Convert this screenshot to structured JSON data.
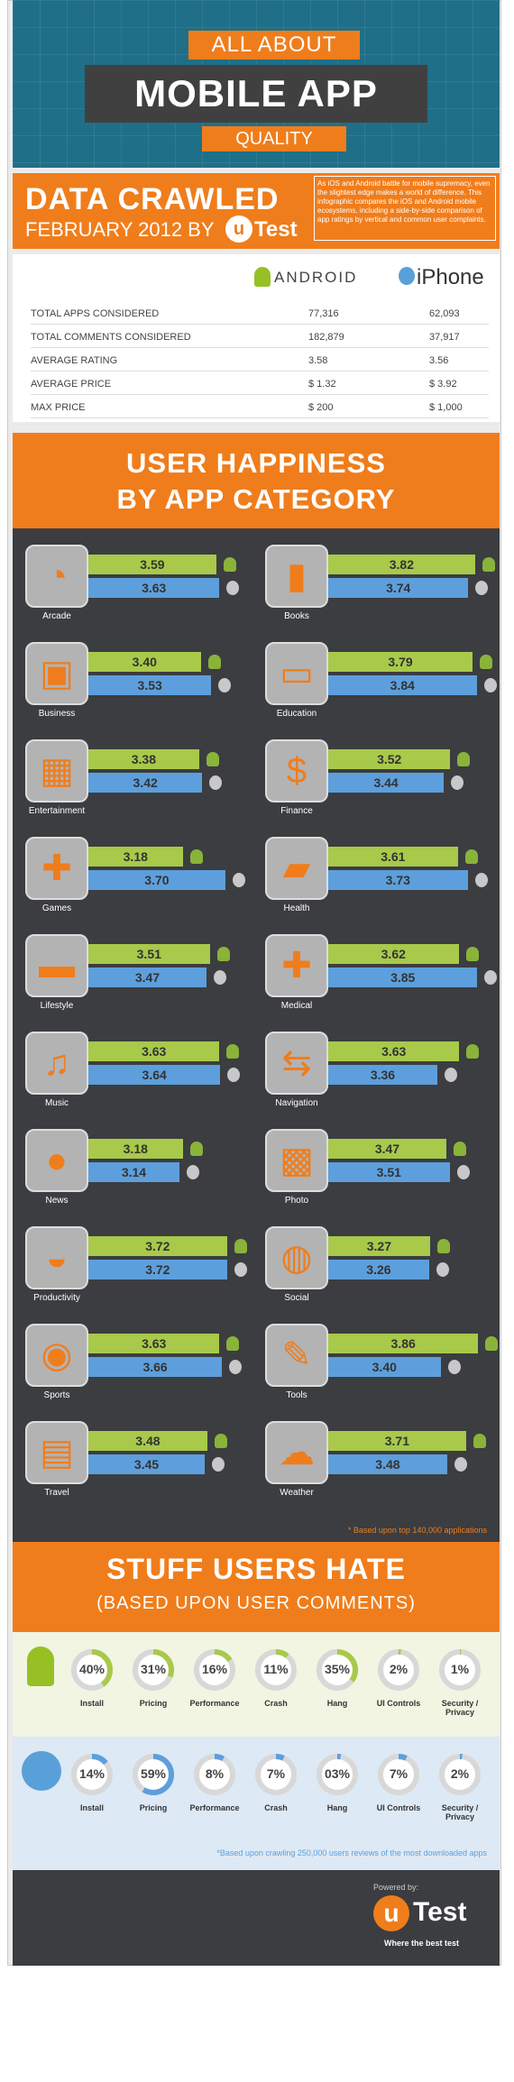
{
  "header": {
    "line1": "ALL ABOUT",
    "line2": "MOBILE APP",
    "line3": "QUALITY",
    "crawled_title": "DATA CRAWLED",
    "crawled_date": "FEBRUARY 2012 BY",
    "logo_mark": "u",
    "logo_name": "Test",
    "intro": "As iOS and Android battle for mobile supremacy, even the slightest edge makes a world of difference. This infographic compares the iOS and Android mobile ecosystems, including a side-by-side comparison of app ratings by vertical and common user complaints."
  },
  "stats": {
    "android_label": "ANDROID",
    "iphone_label": "iPhone",
    "rows": [
      {
        "label": "TOTAL APPS CONSIDERED",
        "android": "77,316",
        "iphone": "62,093"
      },
      {
        "label": "TOTAL COMMENTS CONSIDERED",
        "android": "182,879",
        "iphone": "37,917"
      },
      {
        "label": "AVERAGE RATING",
        "android": "3.58",
        "iphone": "3.56"
      },
      {
        "label": "AVERAGE PRICE",
        "android": "$ 1.32",
        "iphone": "$ 3.92"
      },
      {
        "label": "MAX PRICE",
        "android": "$ 200",
        "iphone": "$ 1,000"
      }
    ]
  },
  "happiness": {
    "title1": "USER HAPPINESS",
    "title2": "BY APP CATEGORY",
    "footnote": "* Based upon top 140,000 applications"
  },
  "hate": {
    "title": "STUFF USERS HATE",
    "subtitle": "(BASED UPON USER COMMENTS)",
    "footnote": "*Based upon crawling 250,000 users reviews of the most downloaded apps"
  },
  "footer": {
    "powered": "Powered by:",
    "logo_mark": "u",
    "logo_name": "Test",
    "tagline": "Where the best test"
  },
  "colors": {
    "orange": "#f07d1b",
    "android_green": "#a8c94a",
    "ios_blue": "#5d9fdc",
    "dark": "#3b3d40"
  },
  "chart_data": [
    {
      "type": "bar",
      "title": "USER HAPPINESS BY APP CATEGORY",
      "categories": [
        "Arcade",
        "Books",
        "Business",
        "Education",
        "Entertainment",
        "Finance",
        "Games",
        "Health",
        "Lifestyle",
        "Medical",
        "Music",
        "Navigation",
        "News",
        "Photo",
        "Productivity",
        "Social",
        "Sports",
        "Tools",
        "Travel",
        "Weather"
      ],
      "icons": [
        "pacman-icon",
        "book-icon",
        "briefcase-icon",
        "open-book-icon",
        "theater-icon",
        "dollar-icon",
        "puzzle-icon",
        "bandage-icon",
        "sofa-icon",
        "cross-icon",
        "music-note-icon",
        "signpost-icon",
        "microphone-icon",
        "photo-icon",
        "gauge-icon",
        "speech-bubbles-icon",
        "basketball-icon",
        "wrench-icon",
        "suitcase-icon",
        "cloud-icon"
      ],
      "series": [
        {
          "platform": "android",
          "values": [
            3.59,
            3.82,
            3.4,
            3.79,
            3.38,
            3.52,
            3.18,
            3.61,
            3.51,
            3.62,
            3.63,
            3.63,
            3.18,
            3.47,
            3.72,
            3.27,
            3.63,
            3.86,
            3.48,
            3.71
          ]
        },
        {
          "platform": "ios",
          "values": [
            3.63,
            3.74,
            3.53,
            3.84,
            3.42,
            3.44,
            3.7,
            3.73,
            3.47,
            3.85,
            3.64,
            3.36,
            3.14,
            3.51,
            3.72,
            3.26,
            3.66,
            3.4,
            3.45,
            3.48
          ]
        }
      ],
      "labels": [
        [
          "3.59",
          "3.63"
        ],
        [
          "3.82",
          "3.74"
        ],
        [
          "3.40",
          "3.53"
        ],
        [
          "3.79",
          "3.84"
        ],
        [
          "3.38",
          "3.42"
        ],
        [
          "3.52",
          "3.44"
        ],
        [
          "3.18",
          "3.70"
        ],
        [
          "3.61",
          "3.73"
        ],
        [
          "3.51",
          "3.47"
        ],
        [
          "3.62",
          "3.85"
        ],
        [
          "3.63",
          "3.64"
        ],
        [
          "3.63",
          "3.36"
        ],
        [
          "3.18",
          "3.14"
        ],
        [
          "3.47",
          "3.51"
        ],
        [
          "3.72",
          "3.72"
        ],
        [
          "3.27",
          "3.26"
        ],
        [
          "3.63",
          "3.66"
        ],
        [
          "3.86",
          "3.40"
        ],
        [
          "3.48",
          "3.45"
        ],
        [
          "3.71",
          "3.48"
        ]
      ]
    },
    {
      "type": "pie",
      "title": "STUFF USERS HATE",
      "categories": [
        "Install",
        "Pricing",
        "Performance",
        "Crash",
        "Hang",
        "UI Controls",
        "Security / Privacy"
      ],
      "series": [
        {
          "platform": "android",
          "values": [
            40,
            31,
            16,
            11,
            35,
            2,
            1
          ],
          "labels": [
            "40%",
            "31%",
            "16%",
            "11%",
            "35%",
            "2%",
            "1%"
          ]
        },
        {
          "platform": "ios",
          "values": [
            14,
            59,
            8,
            7,
            3,
            7,
            2
          ],
          "labels": [
            "14%",
            "59%",
            "8%",
            "7%",
            "03%",
            "7%",
            "2%"
          ]
        }
      ]
    }
  ]
}
